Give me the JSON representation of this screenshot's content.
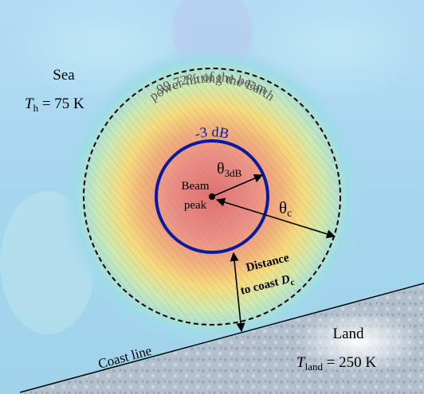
{
  "sea": {
    "label": "Sea",
    "temp_symbol": "T",
    "temp_subscript": "h",
    "temp_value": " = 75 K"
  },
  "land": {
    "label": "Land",
    "temp_symbol": "T",
    "temp_subscript": "land",
    "temp_value": " = 250 K"
  },
  "coast_line_label": "Coast line",
  "beam": {
    "power_annotation_line1": "99.72% of the beam",
    "power_annotation_line2": "power hitting the Earth",
    "contour_label": "-3 dB",
    "peak_label_line1": "Beam",
    "peak_label_line2": "peak",
    "theta_3db_symbol": "θ",
    "theta_3db_subscript": "3dB",
    "theta_c_symbol": "θ",
    "theta_c_subscript": "c"
  },
  "distance_to_coast": {
    "line1": "Distance",
    "line2": "to coast ",
    "symbol": "D",
    "subscript": "c"
  },
  "colors": {
    "outer_circle": "#000000",
    "contour_3db": "#0a1aa0",
    "annotation_text": "#555555",
    "hatch": "#9a9a9a",
    "sea_base": "#a9d7ee",
    "land_base": "#b7c3cf"
  }
}
